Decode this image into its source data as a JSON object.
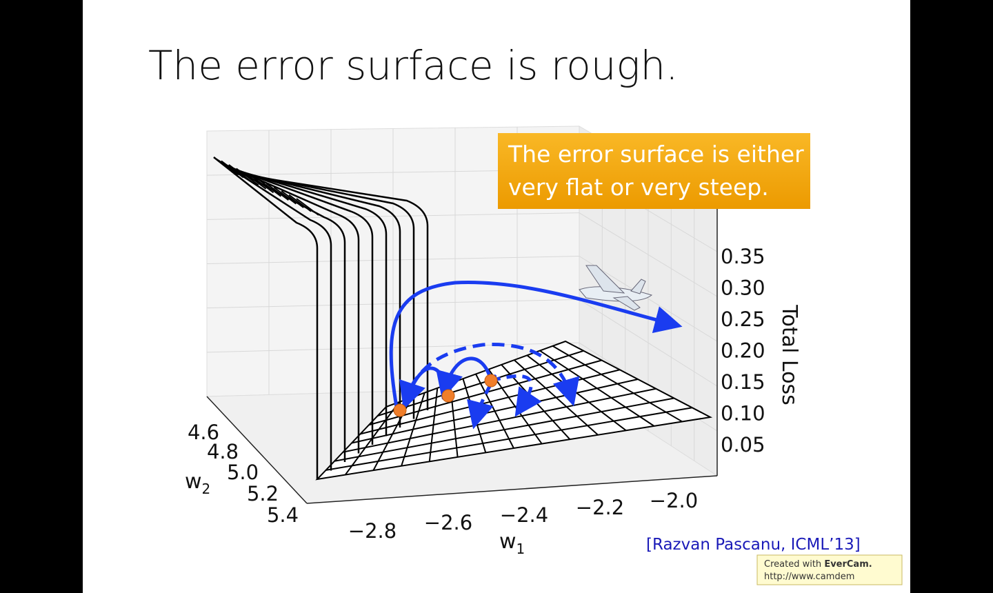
{
  "slide": {
    "title": "The error surface is rough.",
    "callout": {
      "lines": [
        "The error surface is either",
        "very flat or very steep."
      ]
    },
    "figure": {
      "z_axis": {
        "label": "Total Loss",
        "ticks": [
          "0.35",
          "0.30",
          "0.25",
          "0.20",
          "0.15",
          "0.10",
          "0.05"
        ]
      },
      "w2_axis": {
        "label": "w",
        "subscript": "2",
        "ticks": [
          "4.6",
          "4.8",
          "5.0",
          "5.2",
          "5.4"
        ]
      },
      "w1_axis": {
        "label": "w",
        "subscript": "1",
        "ticks": [
          "−2.8",
          "−2.6",
          "−2.4",
          "−2.2",
          "−2.0"
        ]
      }
    },
    "citation": "[Razvan Pascanu, ICML’13]",
    "watermark": {
      "prefix": "Created with",
      "brand": "EverCam.",
      "url": "http://www.camdem"
    }
  }
}
